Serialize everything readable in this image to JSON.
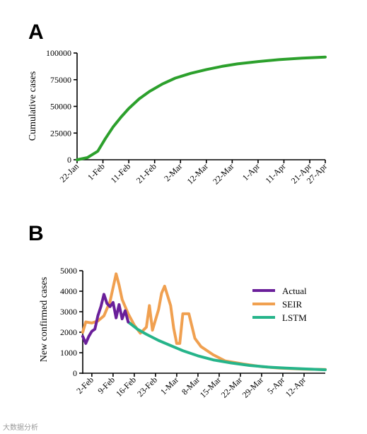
{
  "chart_data": [
    {
      "panel_label": "A",
      "type": "line",
      "title": "",
      "xlabel": "",
      "ylabel": "Cumulative cases",
      "ylim": [
        0,
        100000
      ],
      "yticks": [
        0,
        25000,
        50000,
        75000,
        100000
      ],
      "xticks": [
        "22-Jan",
        "1-Feb",
        "11-Feb",
        "21-Feb",
        "2-Mar",
        "12-Mar",
        "22-Mar",
        "1-Apr",
        "11-Apr",
        "21-Apr",
        "27-Apr"
      ],
      "xlim_days": [
        0,
        96
      ],
      "grid": false,
      "series": [
        {
          "color": "#2ca02c",
          "x": [
            0,
            4,
            8,
            11,
            14,
            17,
            20,
            24,
            28,
            33,
            38,
            44,
            50,
            56,
            62,
            70,
            78,
            87,
            96
          ],
          "y": [
            0,
            2000,
            8000,
            20000,
            31000,
            40000,
            48000,
            57000,
            64000,
            71000,
            76500,
            81000,
            84500,
            87500,
            89800,
            92000,
            93800,
            95200,
            96200
          ]
        }
      ]
    },
    {
      "panel_label": "B",
      "type": "line",
      "title": "",
      "xlabel": "",
      "ylabel": "New confirmed cases",
      "ylim": [
        0,
        5000
      ],
      "yticks": [
        0,
        1000,
        2000,
        3000,
        4000,
        5000
      ],
      "xticks": [
        "2-Feb",
        "9-Feb",
        "16-Feb",
        "23-Feb",
        "1-Mar",
        "8-Mar",
        "15-Mar",
        "22-Mar",
        "29-Mar",
        "5-Apr",
        "12-Apr"
      ],
      "xlim_days": [
        -3,
        77
      ],
      "grid": false,
      "legend_position": "right",
      "series": [
        {
          "name": "SEIR",
          "color": "#f0a050",
          "x": [
            -3,
            -2,
            0,
            2,
            4,
            6,
            8,
            9,
            10,
            12,
            14,
            16,
            18,
            19,
            20,
            22,
            23,
            24,
            26,
            27,
            28,
            29,
            30,
            32,
            34,
            36,
            40,
            44,
            50,
            56,
            62,
            70,
            77
          ],
          "y": [
            2000,
            2500,
            2450,
            2550,
            2800,
            3500,
            4850,
            4300,
            3600,
            2900,
            2350,
            1950,
            2250,
            3300,
            2100,
            3100,
            3900,
            4250,
            3300,
            2200,
            1450,
            1450,
            2900,
            2900,
            1700,
            1300,
            900,
            600,
            450,
            320,
            250,
            200,
            180
          ]
        },
        {
          "name": "LSTM",
          "color": "#26b48a",
          "x": [
            12,
            15,
            18,
            22,
            26,
            30,
            35,
            40,
            46,
            52,
            58,
            64,
            70,
            77
          ],
          "y": [
            2500,
            2150,
            1900,
            1600,
            1350,
            1100,
            850,
            650,
            500,
            380,
            300,
            250,
            210,
            170
          ]
        },
        {
          "name": "Actual",
          "color": "#6a1f9a",
          "x": [
            -3,
            -2,
            -1,
            0,
            1,
            2,
            3,
            4,
            5,
            6,
            7,
            8,
            9,
            10,
            11,
            12
          ],
          "y": [
            1800,
            1450,
            1800,
            2050,
            2150,
            2800,
            3250,
            3850,
            3400,
            3250,
            3450,
            2700,
            3350,
            2650,
            3050,
            2500
          ]
        }
      ]
    }
  ],
  "watermark": "大数据分析"
}
